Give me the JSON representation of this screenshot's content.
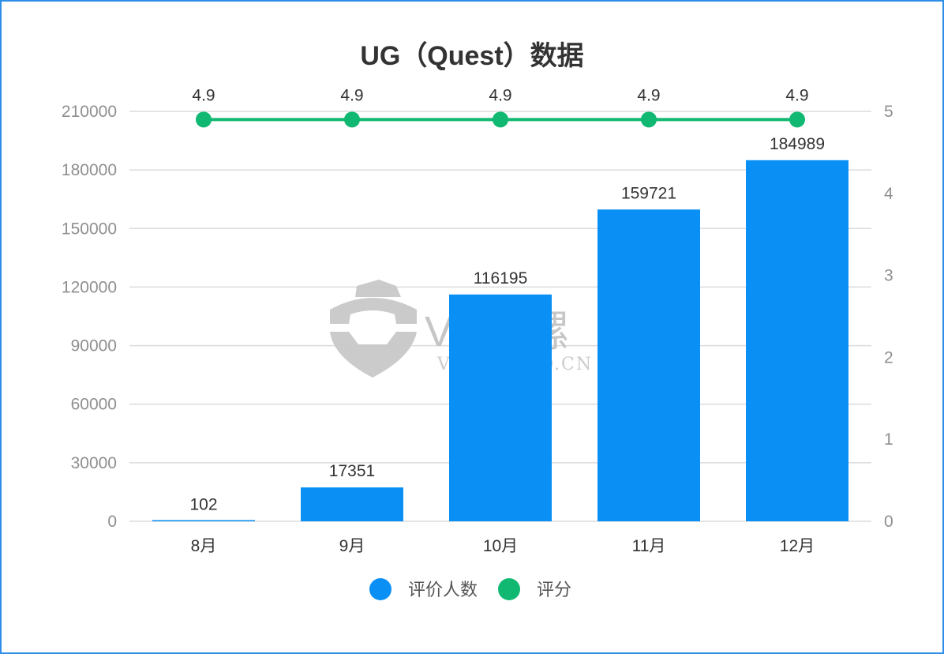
{
  "chart_data": {
    "type": "bar",
    "title": "UG（Quest）数据",
    "categories": [
      "8月",
      "9月",
      "10月",
      "11月",
      "12月"
    ],
    "series": [
      {
        "name": "评价人数",
        "type": "bar",
        "axis": "left",
        "color": "#0a8ff5",
        "values": [
          102,
          17351,
          116195,
          159721,
          184989
        ]
      },
      {
        "name": "评分",
        "type": "line",
        "axis": "right",
        "color": "#10b872",
        "values": [
          4.9,
          4.9,
          4.9,
          4.9,
          4.9
        ]
      }
    ],
    "y_left": {
      "ylim": [
        0,
        210000
      ],
      "ticks": [
        "0",
        "30000",
        "60000",
        "90000",
        "120000",
        "150000",
        "180000",
        "210000"
      ]
    },
    "y_right": {
      "ylim": [
        0,
        5
      ],
      "ticks": [
        "0",
        "1",
        "2",
        "3",
        "4",
        "5"
      ]
    },
    "grid": true,
    "legend": "bottom"
  },
  "watermark": {
    "brand": "VR陀螺",
    "url": "VRTUOLUO.CN"
  }
}
